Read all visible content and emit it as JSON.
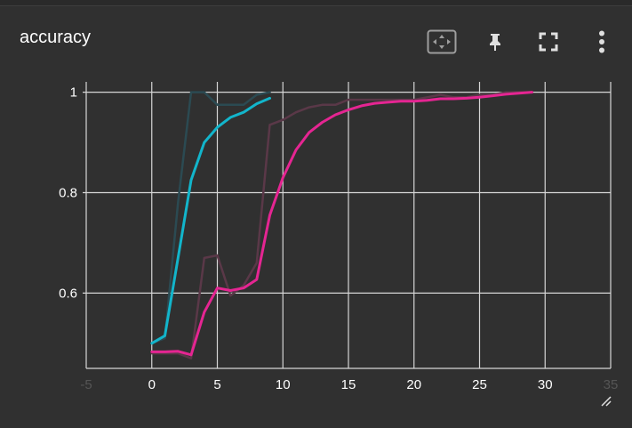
{
  "card": {
    "title": "accuracy",
    "icons": {
      "fit": "fit-domain-icon",
      "pin": "pin-icon",
      "fullscreen": "fullscreen-icon",
      "menu": "more-vert-icon",
      "resize": "resize-handle-icon"
    }
  },
  "chart_data": {
    "type": "line",
    "title": "accuracy",
    "xlabel": "",
    "ylabel": "",
    "xlim": [
      -5,
      35
    ],
    "ylim": [
      0.45,
      1.01
    ],
    "x_ticks": [
      "-5",
      "0",
      "5",
      "10",
      "15",
      "20",
      "25",
      "30",
      "35"
    ],
    "y_ticks": [
      "0.6",
      "0.8",
      "1"
    ],
    "grid": true,
    "series": [
      {
        "color": "#2b4a52",
        "style": "raw",
        "x": [
          0,
          1,
          2,
          3,
          4,
          5,
          6,
          7,
          8,
          9
        ],
        "y": [
          0.5,
          0.51,
          0.78,
          1.0,
          1.0,
          0.975,
          0.975,
          0.975,
          0.995,
          1.0
        ]
      },
      {
        "color": "#12b5cb",
        "style": "smoothed",
        "x": [
          0,
          1,
          2,
          3,
          4,
          5,
          6,
          7,
          8,
          9
        ],
        "y": [
          0.5,
          0.515,
          0.67,
          0.825,
          0.9,
          0.93,
          0.95,
          0.96,
          0.977,
          0.988
        ]
      },
      {
        "color": "#5a3848",
        "style": "raw",
        "x": [
          0,
          1,
          2,
          3,
          4,
          5,
          6,
          7,
          8,
          9,
          10,
          11,
          12,
          13,
          14,
          15,
          16,
          17,
          18,
          19,
          20,
          21,
          22,
          23,
          24,
          25,
          26,
          27,
          28,
          29
        ],
        "y": [
          0.48,
          0.48,
          0.48,
          0.47,
          0.67,
          0.675,
          0.595,
          0.615,
          0.66,
          0.935,
          0.945,
          0.96,
          0.97,
          0.975,
          0.975,
          0.985,
          0.985,
          0.985,
          0.985,
          0.985,
          0.985,
          0.99,
          0.995,
          0.99,
          0.99,
          0.995,
          0.995,
          1.0,
          1.0,
          1.0
        ]
      },
      {
        "color": "#e52592",
        "style": "smoothed",
        "x": [
          0,
          1,
          2,
          3,
          4,
          5,
          6,
          7,
          8,
          9,
          10,
          11,
          12,
          13,
          14,
          15,
          16,
          17,
          18,
          19,
          20,
          21,
          22,
          23,
          24,
          25,
          26,
          27,
          28,
          29
        ],
        "y": [
          0.483,
          0.483,
          0.484,
          0.477,
          0.562,
          0.61,
          0.605,
          0.61,
          0.627,
          0.755,
          0.83,
          0.885,
          0.92,
          0.94,
          0.955,
          0.965,
          0.973,
          0.978,
          0.98,
          0.982,
          0.982,
          0.984,
          0.987,
          0.987,
          0.988,
          0.99,
          0.993,
          0.996,
          0.998,
          1.0
        ]
      }
    ]
  }
}
